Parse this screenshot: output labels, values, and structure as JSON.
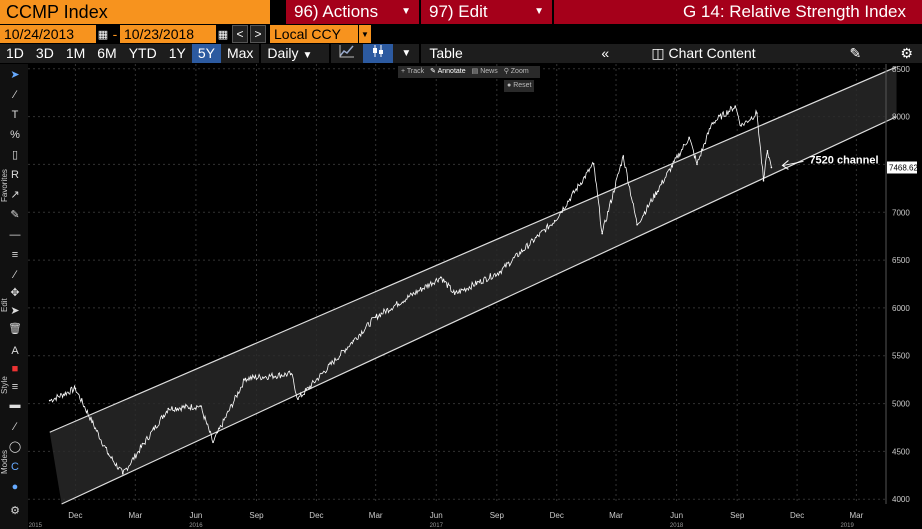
{
  "header": {
    "ticker": "CCMP Index",
    "actions_label": "96) Actions",
    "edit_label": "97) Edit",
    "function_title": "G 14: Relative Strength Index"
  },
  "range": {
    "start": "10/24/2013",
    "end": "10/23/2018",
    "currency": "Local CCY"
  },
  "periods": [
    "1D",
    "3D",
    "1M",
    "6M",
    "YTD",
    "1Y",
    "5Y",
    "Max"
  ],
  "active_period": "5Y",
  "frequency": "Daily",
  "table_label": "Table",
  "chart_content_label": "Chart Content",
  "mini_toolbar": [
    "Track",
    "Annotate",
    "News",
    "Zoom"
  ],
  "reset_label": "Reset",
  "sidebar_labels": [
    "Favorites",
    "Edit",
    "Style",
    "Modes"
  ],
  "colors": {
    "bloomberg_orange": "#f7931e",
    "header_red": "#a5001a",
    "active_blue": "#2c5aa0",
    "price_line": "#ffffff",
    "channel_line": "#dddddd",
    "channel_fill": "#2a2a2a"
  },
  "chart_data": {
    "type": "line",
    "title": "",
    "ylim": [
      3950,
      8550
    ],
    "y_ticks": [
      4000,
      4500,
      5000,
      5500,
      6000,
      6500,
      7000,
      7500,
      8000,
      8500
    ],
    "x_tick_labels": [
      "Dec",
      "Mar",
      "Jun",
      "Sep",
      "Dec",
      "Mar",
      "Jun",
      "Sep",
      "Dec",
      "Mar",
      "Jun",
      "Sep",
      "Dec",
      "Mar"
    ],
    "year_labels": [
      "2015",
      "2016",
      "2017",
      "2018",
      "2019"
    ],
    "last_price_label": "7468.629",
    "annotation": "7520 channel",
    "series": [
      {
        "values": [
          [
            "2015-10-23",
            5031
          ],
          [
            "2015-12-01",
            5156
          ],
          [
            "2016-01-20",
            4472
          ],
          [
            "2016-02-11",
            4266
          ],
          [
            "2016-04-20",
            4948
          ],
          [
            "2016-06-08",
            4974
          ],
          [
            "2016-06-27",
            4595
          ],
          [
            "2016-08-15",
            5262
          ],
          [
            "2016-10-24",
            5310
          ],
          [
            "2016-11-03",
            5046
          ],
          [
            "2017-01-26",
            5656
          ],
          [
            "2017-03-01",
            5904
          ],
          [
            "2017-06-08",
            6321
          ],
          [
            "2017-06-29",
            6145
          ],
          [
            "2017-09-05",
            6375
          ],
          [
            "2017-11-28",
            6912
          ],
          [
            "2018-01-26",
            7506
          ],
          [
            "2018-02-08",
            6777
          ],
          [
            "2018-03-12",
            7588
          ],
          [
            "2018-04-02",
            6870
          ],
          [
            "2018-06-20",
            7782
          ],
          [
            "2018-07-02",
            7503
          ],
          [
            "2018-07-25",
            7933
          ],
          [
            "2018-08-29",
            8109
          ],
          [
            "2018-09-07",
            7903
          ],
          [
            "2018-10-01",
            8037
          ],
          [
            "2018-10-11",
            7329
          ],
          [
            "2018-10-17",
            7642
          ],
          [
            "2018-10-23",
            7468
          ]
        ]
      }
    ],
    "channel": {
      "upper": [
        [
          "2015-10-23",
          4700
        ],
        [
          "2019-05-01",
          8520
        ]
      ],
      "lower": [
        [
          "2015-11-10",
          3950
        ],
        [
          "2019-05-01",
          8000
        ]
      ]
    },
    "grid": true
  }
}
